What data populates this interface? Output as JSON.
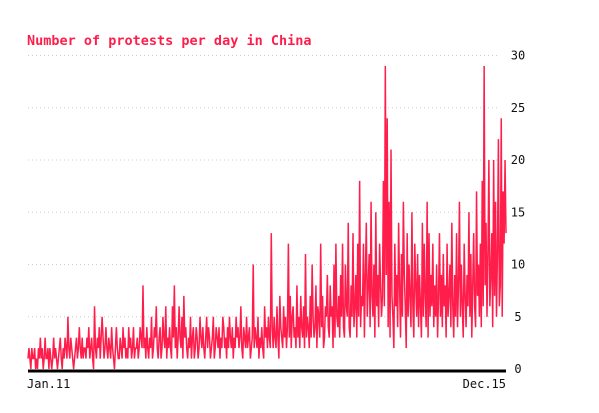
{
  "chart_data": {
    "type": "line",
    "title": "Number of protests per day in China",
    "xlabel": "",
    "ylabel": "",
    "x_tick_labels": [
      "Jan.11",
      "Dec.15"
    ],
    "x_range": [
      "Jan.11",
      "Dec.15"
    ],
    "y_ticks": [
      0,
      5,
      10,
      15,
      20,
      25,
      30
    ],
    "ylim": [
      0,
      32
    ],
    "grid": "horizontal dotted",
    "y_axis_side": "right",
    "series": [
      {
        "values": [
          1,
          2,
          1,
          0,
          2,
          1,
          1,
          2,
          0,
          1,
          0,
          2,
          1,
          3,
          1,
          2,
          0,
          1,
          3,
          1,
          1,
          2,
          0,
          2,
          1,
          0,
          1,
          3,
          1,
          2,
          1,
          0,
          1,
          2,
          3,
          1,
          0,
          2,
          1,
          3,
          2,
          1,
          5,
          2,
          1,
          3,
          2,
          1,
          0,
          1,
          2,
          3,
          1,
          2,
          4,
          2,
          1,
          3,
          1,
          2,
          2,
          1,
          3,
          2,
          4,
          1,
          2,
          3,
          1,
          0,
          6,
          2,
          1,
          3,
          2,
          4,
          1,
          3,
          5,
          3,
          1,
          2,
          4,
          2,
          1,
          3,
          2,
          1,
          4,
          2,
          1,
          0,
          2,
          4,
          2,
          1,
          1,
          3,
          2,
          1,
          4,
          2,
          3,
          1,
          2,
          1,
          4,
          2,
          3,
          1,
          2,
          4,
          1,
          2,
          2,
          3,
          1,
          2,
          4,
          3,
          2,
          8,
          2,
          3,
          1,
          4,
          2,
          1,
          3,
          2,
          5,
          1,
          2,
          4,
          3,
          6,
          2,
          1,
          3,
          4,
          1,
          2,
          5,
          3,
          2,
          6,
          1,
          3,
          2,
          4,
          2,
          1,
          6,
          3,
          8,
          2,
          4,
          1,
          3,
          6,
          3,
          2,
          5,
          1,
          7,
          3,
          4,
          2,
          1,
          3,
          2,
          5,
          1,
          3,
          4,
          1,
          2,
          4,
          3,
          1,
          2,
          5,
          3,
          2,
          4,
          2,
          1,
          3,
          5,
          2,
          4,
          3,
          1,
          2,
          3,
          5,
          1,
          2,
          4,
          3,
          2,
          4,
          1,
          3,
          2,
          5,
          4,
          2,
          3,
          1,
          4,
          2,
          5,
          3,
          2,
          4,
          1,
          3,
          2,
          5,
          3,
          4,
          2,
          3,
          6,
          2,
          1,
          4,
          3,
          2,
          5,
          2,
          3,
          4,
          1,
          2,
          3,
          10,
          2,
          4,
          3,
          2,
          5,
          1,
          3,
          2,
          4,
          2,
          1,
          6,
          3,
          4,
          2,
          5,
          3,
          2,
          13,
          4,
          2,
          5,
          3,
          2,
          6,
          3,
          1,
          7,
          4,
          3,
          2,
          6,
          3,
          5,
          2,
          4,
          12,
          3,
          7,
          2,
          5,
          6,
          3,
          4,
          2,
          8,
          3,
          5,
          2,
          7,
          4,
          3,
          6,
          2,
          11,
          3,
          5,
          4,
          2,
          7,
          3,
          10,
          5,
          3,
          4,
          8,
          2,
          6,
          5,
          3,
          12,
          4,
          7,
          2,
          3,
          6,
          5,
          9,
          4,
          3,
          8,
          5,
          6,
          2,
          10,
          3,
          12,
          5,
          4,
          7,
          3,
          9,
          5,
          12,
          4,
          3,
          10,
          6,
          5,
          14,
          4,
          3,
          8,
          5,
          13,
          4,
          6,
          9,
          3,
          12,
          5,
          18,
          4,
          7,
          6,
          12,
          3,
          9,
          14,
          5,
          8,
          11,
          4,
          16,
          7,
          5,
          10,
          3,
          15,
          6,
          9,
          4,
          12,
          8,
          5,
          7,
          18,
          6,
          29,
          9,
          24,
          4,
          16,
          3,
          21,
          7,
          5,
          2,
          12,
          6,
          9,
          4,
          14,
          8,
          3,
          11,
          5,
          16,
          9,
          6,
          2,
          13,
          5,
          10,
          7,
          4,
          15,
          6,
          3,
          12,
          8,
          5,
          11,
          4,
          9,
          6,
          3,
          14,
          5,
          12,
          7,
          4,
          16,
          3,
          13,
          5,
          9,
          6,
          12,
          4,
          8,
          5,
          10,
          3,
          7,
          13,
          5,
          9,
          4,
          11,
          6,
          8,
          3,
          12,
          5,
          7,
          10,
          4,
          14,
          6,
          3,
          9,
          5,
          13,
          4,
          8,
          16,
          5,
          10,
          6,
          3,
          12,
          7,
          4,
          9,
          6,
          15,
          5,
          11,
          3,
          8,
          13,
          6,
          4,
          17,
          7,
          10,
          5,
          12,
          4,
          18,
          6,
          29,
          8,
          14,
          5,
          11,
          20,
          6,
          9,
          13,
          4,
          20,
          7,
          16,
          5,
          11,
          22,
          6,
          8,
          24,
          5,
          17,
          12,
          20,
          13
        ]
      }
    ],
    "colors": {
      "line": "#ff1e4b",
      "grid": "#cccccc",
      "baseline": "#000000"
    }
  }
}
